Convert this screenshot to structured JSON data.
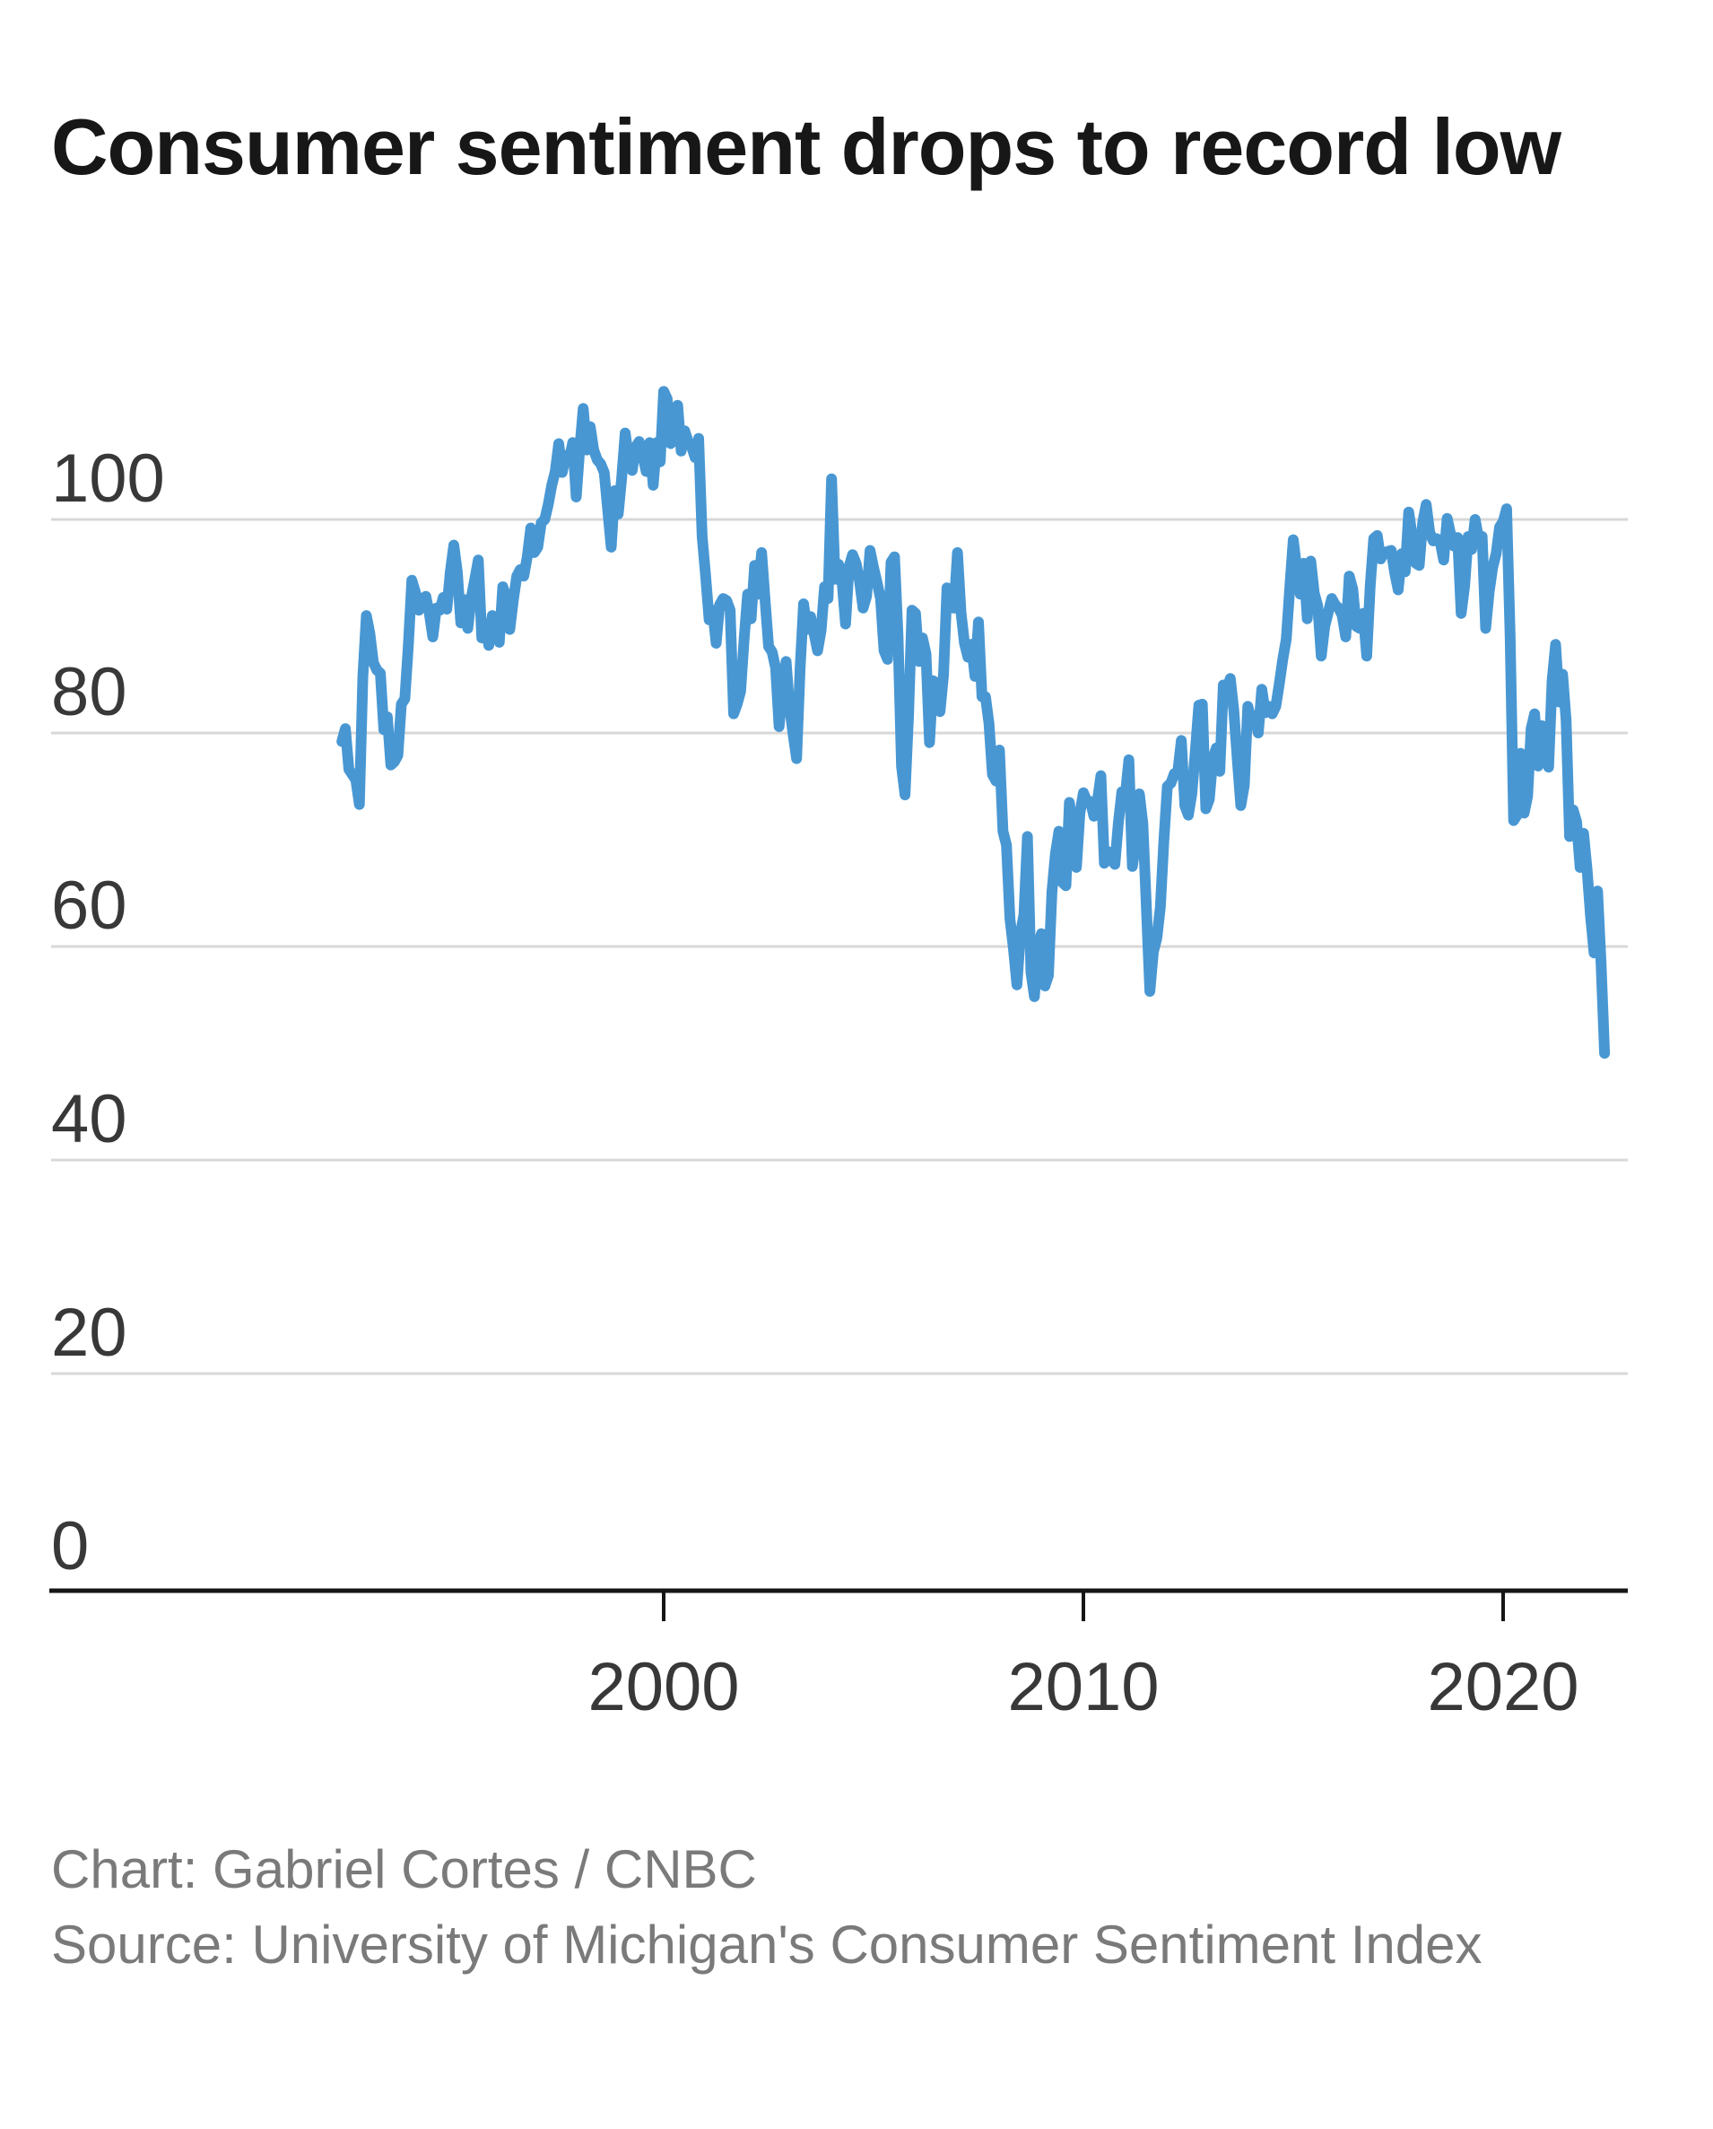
{
  "title": "Consumer sentiment drops to record low",
  "credits": {
    "chart_credit": "Chart: Gabriel Cortes / CNBC",
    "source_credit": "Source: University of Michigan's Consumer Sentiment Index"
  },
  "colors": {
    "line": "#4897D3",
    "gridline": "#d8d8d8",
    "axis": "#161616",
    "tick_label": "#383838",
    "title_text": "#171717",
    "credits_text": "#7a7a7a",
    "background": "#ffffff"
  },
  "chart_data": {
    "type": "line",
    "title": "Consumer sentiment drops to record low",
    "series_name": "University of Michigan Consumer Sentiment Index",
    "frequency": "monthly",
    "start": "1992-05",
    "end": "2022-06",
    "x_ticks": [
      2000,
      2010,
      2020
    ],
    "y_ticks": [
      0,
      20,
      40,
      60,
      80,
      100
    ],
    "ylim": [
      0,
      115
    ],
    "xlim_years": [
      1992.1,
      2023.0
    ],
    "grid": "horizontal",
    "legend": "none",
    "line_width": 12,
    "values": [
      79.2,
      80.4,
      76.6,
      76.1,
      75.6,
      73.3,
      85.3,
      91.0,
      89.3,
      86.6,
      85.9,
      85.6,
      80.3,
      81.5,
      77.0,
      77.3,
      77.9,
      82.7,
      83.2,
      88.2,
      94.3,
      93.2,
      91.5,
      92.6,
      92.8,
      91.2,
      89.0,
      91.7,
      91.5,
      92.7,
      91.6,
      95.1,
      97.6,
      95.1,
      90.3,
      92.5,
      89.8,
      92.7,
      94.4,
      96.2,
      88.9,
      90.2,
      88.2,
      91.0,
      89.3,
      88.5,
      93.7,
      92.7,
      89.7,
      92.4,
      94.7,
      95.3,
      94.7,
      96.5,
      99.2,
      96.9,
      97.4,
      99.7,
      100.0,
      101.4,
      103.2,
      104.5,
      107.1,
      104.4,
      106.0,
      105.6,
      107.2,
      102.1,
      106.6,
      110.4,
      106.5,
      108.7,
      106.5,
      105.6,
      105.2,
      104.4,
      100.9,
      97.4,
      102.7,
      100.5,
      103.9,
      108.1,
      105.7,
      104.6,
      106.8,
      107.3,
      106.0,
      104.5,
      107.2,
      103.2,
      107.2,
      105.4,
      112.0,
      111.3,
      107.1,
      109.2,
      110.7,
      106.4,
      108.3,
      107.3,
      106.8,
      105.8,
      107.6,
      98.4,
      94.7,
      90.6,
      91.5,
      88.4,
      92.0,
      92.6,
      92.4,
      91.5,
      81.8,
      82.7,
      83.9,
      88.8,
      93.0,
      90.7,
      95.7,
      93.0,
      96.9,
      92.4,
      88.1,
      87.6,
      86.1,
      80.6,
      84.2,
      86.7,
      82.4,
      79.9,
      77.6,
      86.0,
      92.1,
      89.7,
      90.9,
      89.3,
      87.7,
      89.6,
      93.7,
      92.6,
      103.8,
      94.4,
      95.8,
      94.2,
      90.2,
      95.6,
      96.7,
      95.9,
      94.2,
      91.7,
      92.8,
      97.1,
      95.5,
      94.1,
      92.6,
      87.7,
      86.9,
      96.0,
      96.5,
      89.1,
      76.9,
      74.2,
      81.6,
      91.5,
      91.2,
      86.7,
      88.9,
      87.4,
      79.1,
      84.9,
      84.7,
      82.0,
      85.4,
      93.6,
      92.1,
      91.7,
      96.9,
      91.3,
      88.4,
      87.1,
      88.3,
      85.3,
      90.4,
      83.4,
      83.4,
      80.9,
      76.1,
      75.5,
      78.4,
      70.8,
      69.5,
      62.6,
      59.8,
      56.4,
      61.2,
      63.0,
      70.3,
      57.6,
      55.3,
      60.1,
      61.2,
      56.3,
      57.3,
      65.1,
      68.7,
      70.8,
      66.0,
      65.7,
      73.5,
      70.6,
      67.4,
      72.5,
      74.4,
      73.6,
      73.6,
      72.2,
      73.6,
      76.0,
      67.8,
      68.9,
      68.2,
      67.7,
      71.6,
      74.5,
      74.2,
      77.5,
      67.5,
      69.8,
      74.3,
      71.5,
      63.7,
      55.8,
      59.5,
      60.8,
      63.7,
      69.9,
      75.0,
      75.3,
      76.2,
      76.4,
      79.3,
      73.2,
      72.3,
      74.3,
      78.3,
      82.6,
      82.7,
      72.9,
      73.8,
      77.6,
      78.6,
      76.4,
      84.5,
      84.1,
      85.1,
      82.1,
      77.5,
      73.2,
      75.1,
      82.5,
      81.2,
      81.6,
      80.0,
      84.1,
      81.9,
      82.5,
      81.8,
      82.5,
      84.6,
      86.9,
      88.8,
      93.6,
      98.1,
      95.4,
      93.0,
      95.9,
      90.7,
      96.1,
      93.1,
      91.9,
      87.2,
      90.0,
      91.3,
      92.6,
      92.0,
      91.7,
      91.0,
      89.0,
      94.7,
      93.5,
      90.0,
      89.8,
      91.2,
      87.2,
      93.8,
      98.2,
      98.5,
      96.3,
      96.9,
      97.0,
      97.1,
      95.0,
      93.4,
      96.8,
      95.1,
      100.7,
      98.5,
      95.9,
      95.7,
      99.7,
      101.4,
      98.8,
      98.0,
      98.2,
      97.9,
      96.2,
      100.1,
      98.6,
      97.5,
      98.3,
      91.2,
      93.8,
      98.4,
      97.2,
      100.0,
      98.2,
      98.4,
      89.8,
      93.2,
      95.5,
      96.8,
      99.3,
      99.8,
      101.0,
      89.1,
      71.8,
      72.3,
      78.1,
      72.5,
      74.1,
      80.4,
      81.8,
      76.9,
      80.7,
      79.0,
      76.8,
      84.9,
      88.3,
      82.9,
      85.5,
      81.2,
      70.3,
      72.8,
      71.7,
      67.4,
      70.6,
      67.2,
      62.8,
      59.4,
      65.2,
      58.4,
      50.0
    ]
  }
}
